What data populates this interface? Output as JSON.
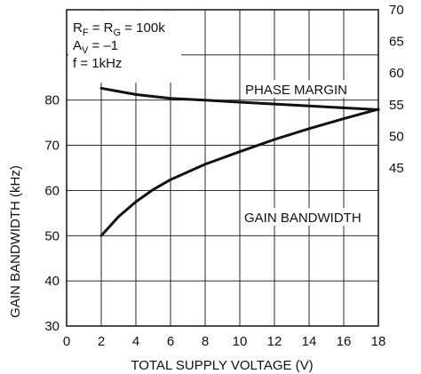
{
  "chart_data": {
    "type": "line",
    "xlabel": "TOTAL SUPPLY VOLTAGE (V)",
    "ylabel_left": "GAIN BANDWIDTH (kHz)",
    "ylabel_right": "",
    "x": {
      "min": 0,
      "max": 18,
      "ticks": [
        0,
        2,
        4,
        6,
        8,
        10,
        12,
        14,
        16,
        18
      ]
    },
    "y_left": {
      "min": 30,
      "max": 100,
      "ticks": [
        30,
        40,
        50,
        60,
        70,
        80
      ]
    },
    "y_right": {
      "min": 20,
      "max": 70,
      "ticks": [
        45,
        50,
        55,
        60,
        65,
        70
      ]
    },
    "grid": true,
    "series": [
      {
        "name": "PHASE MARGIN",
        "axis": "right",
        "x": [
          2,
          4,
          6,
          8,
          10,
          12,
          14,
          16,
          18
        ],
        "y": [
          57.6,
          56.6,
          56.0,
          55.7,
          55.4,
          55.1,
          54.8,
          54.5,
          54.2
        ]
      },
      {
        "name": "GAIN BANDWIDTH",
        "axis": "left",
        "x": [
          2,
          3,
          4,
          5,
          6,
          8,
          10,
          12,
          14,
          16,
          18
        ],
        "y": [
          50.0,
          54.2,
          57.5,
          60.2,
          62.4,
          65.8,
          68.6,
          71.3,
          73.7,
          75.9,
          78.0
        ]
      }
    ],
    "annotation": {
      "lines": [
        {
          "main": "R",
          "sub": "F",
          "rest": " = R",
          "sub2": "G",
          "rest2": " = 100k"
        },
        {
          "main": "A",
          "sub": "V",
          "rest": " = –1"
        },
        {
          "main": "f = 1kHz"
        }
      ]
    }
  }
}
